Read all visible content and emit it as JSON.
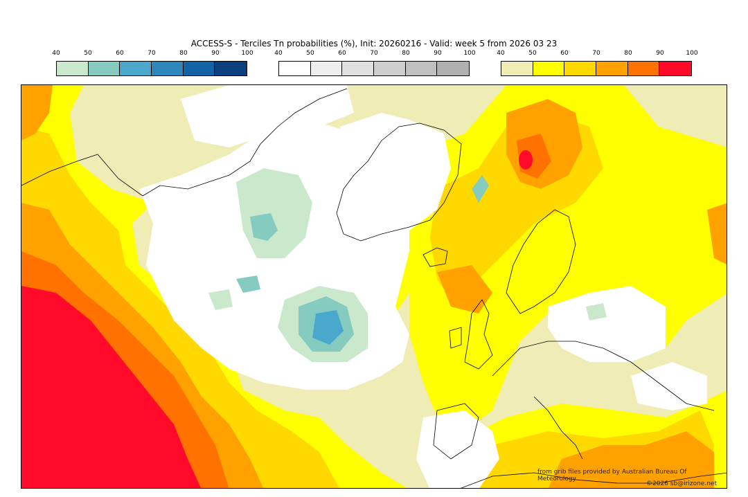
{
  "title": "ACCESS-S - Terciles Tn probabilities (%), Init: 20260216 - Valid: week 5 from 2026 03 23",
  "colorbars": [
    {
      "name": "below-normal",
      "ticks": [
        "40",
        "50",
        "60",
        "70",
        "80",
        "90",
        "100"
      ],
      "colors": [
        "#c9e8cc",
        "#86cbc0",
        "#4aa8cc",
        "#2e87bb",
        "#1463a6",
        "#0c3f7e"
      ]
    },
    {
      "name": "near-normal",
      "ticks": [
        "40",
        "50",
        "60",
        "70",
        "80",
        "90",
        "100"
      ],
      "colors": [
        "#ffffff",
        "#efefef",
        "#e0e0e0",
        "#cecece",
        "#c0c0c0",
        "#b0b0b0"
      ]
    },
    {
      "name": "above-normal",
      "ticks": [
        "40",
        "50",
        "60",
        "70",
        "80",
        "90",
        "100"
      ],
      "colors": [
        "#efecb6",
        "#ffff00",
        "#ffd800",
        "#ffa200",
        "#ff7200",
        "#ff0a2a"
      ]
    }
  ],
  "credits": {
    "source": "from grib files provided by Australian Bureau Of Meteorology",
    "copyright": "©2026 sb@irizone.net"
  }
}
